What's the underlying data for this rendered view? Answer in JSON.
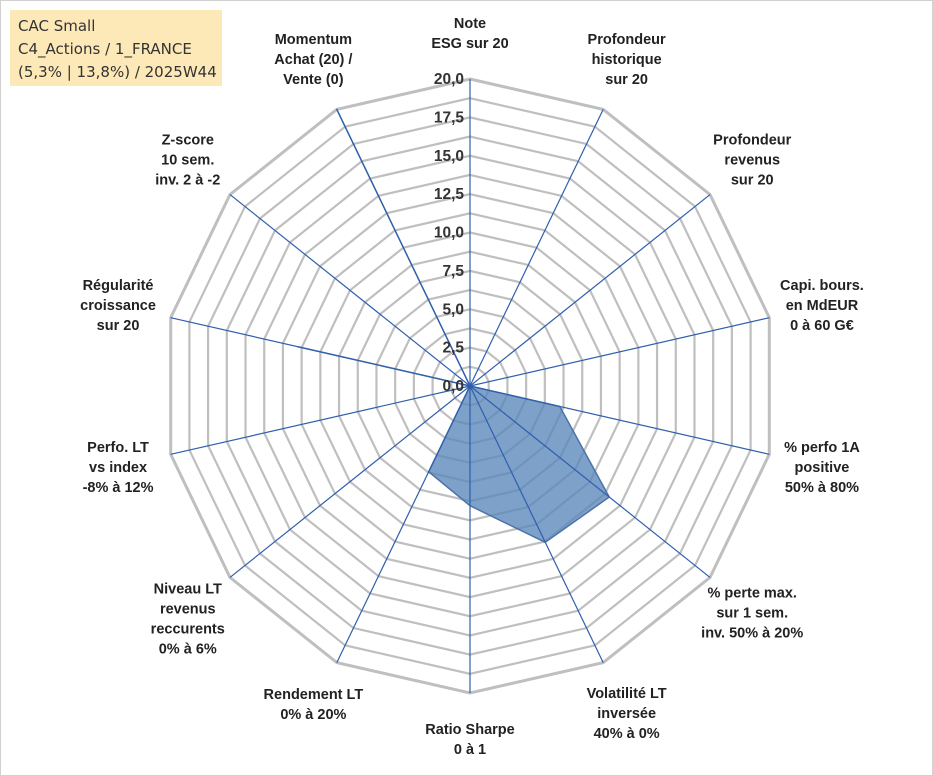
{
  "title_box": {
    "line1": "CAC Small",
    "line2": "C4_Actions / 1_FRANCE",
    "line3": "(5,3% | 13,8%) / 2025W44"
  },
  "chart_data": {
    "type": "radar",
    "title": "",
    "rlim": [
      0,
      20
    ],
    "ticks": [
      "0,0",
      "2,5",
      "5,0",
      "7,5",
      "10,0",
      "12,5",
      "15,0",
      "17,5",
      "20,0"
    ],
    "tick_values": [
      0,
      2.5,
      5,
      7.5,
      10,
      12.5,
      15,
      17.5,
      20
    ],
    "grid_step": 1.25,
    "categories": [
      [
        "Note",
        "ESG sur 20"
      ],
      [
        "Profondeur",
        "historique",
        "sur 20"
      ],
      [
        "Profondeur",
        "revenus",
        "sur 20"
      ],
      [
        "Capi. bours.",
        "en MdEUR",
        "0 à 60 G€"
      ],
      [
        "% perfo 1A",
        "positive",
        "50% à 80%"
      ],
      [
        "% perte max.",
        "sur 1 sem.",
        "inv. 50% à 20%"
      ],
      [
        "Volatilité LT",
        "inversée",
        "40% à 0%"
      ],
      [
        "Ratio Sharpe",
        "0 à 1"
      ],
      [
        "Rendement LT",
        "0% à 20%"
      ],
      [
        "Niveau LT",
        "revenus",
        "reccurents",
        "0% à 6%"
      ],
      [
        "Perfo. LT",
        "vs index",
        "-8% à 12%"
      ],
      [
        "Régularité",
        "croissance",
        "sur 20"
      ],
      [
        "Z-score",
        "10 sem.",
        "inv. 2 à -2"
      ],
      [
        "Momentum",
        "Achat (20) /",
        "Vente (0)"
      ]
    ],
    "series": [
      {
        "values": [
          0,
          0,
          0,
          0,
          6.0,
          11.6,
          11.3,
          7.8,
          6.2,
          0,
          0,
          11.5,
          0,
          20
        ]
      }
    ],
    "colors": {
      "fill": "#5a86bb",
      "fill_opacity": 0.78,
      "series_stroke": "#4a74a8",
      "spoke": "#2f5fad",
      "grid": "#bfbfbf"
    }
  }
}
